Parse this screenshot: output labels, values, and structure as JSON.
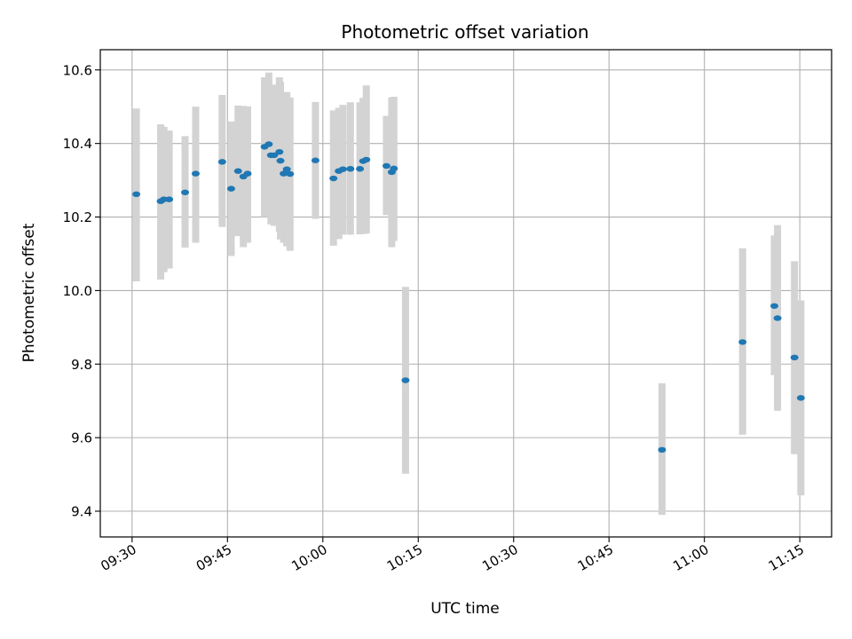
{
  "chart_data": {
    "type": "scatter",
    "title": "Photometric offset variation",
    "xlabel": "UTC time",
    "ylabel": "Photometric offset",
    "xlim": [
      "09:25",
      "11:20"
    ],
    "ylim": [
      9.33,
      10.655
    ],
    "grid": true,
    "xticks": [
      {
        "t": "09:30",
        "label": "09:30"
      },
      {
        "t": "09:45",
        "label": "09:45"
      },
      {
        "t": "10:00",
        "label": "10:00"
      },
      {
        "t": "10:15",
        "label": "10:15"
      },
      {
        "t": "10:30",
        "label": "10:30"
      },
      {
        "t": "10:45",
        "label": "10:45"
      },
      {
        "t": "11:00",
        "label": "11:00"
      },
      {
        "t": "11:15",
        "label": "11:15"
      }
    ],
    "yticks": [
      {
        "v": 9.4,
        "label": "9.4"
      },
      {
        "v": 9.6,
        "label": "9.6"
      },
      {
        "v": 9.8,
        "label": "9.8"
      },
      {
        "v": 10.0,
        "label": "10.0"
      },
      {
        "v": 10.2,
        "label": "10.2"
      },
      {
        "v": 10.4,
        "label": "10.4"
      },
      {
        "v": 10.6,
        "label": "10.6"
      }
    ],
    "colors": {
      "marker": "#1f77b4",
      "errorbar": "#d3d3d3",
      "grid": "#b0b0b0"
    },
    "points": [
      {
        "t": "09:30:40",
        "y": 10.262,
        "ylo": 10.025,
        "yhi": 10.495
      },
      {
        "t": "09:34:30",
        "y": 10.243,
        "ylo": 10.03,
        "yhi": 10.452
      },
      {
        "t": "09:35:00",
        "y": 10.248,
        "ylo": 10.05,
        "yhi": 10.445
      },
      {
        "t": "09:35:50",
        "y": 10.248,
        "ylo": 10.06,
        "yhi": 10.435
      },
      {
        "t": "09:38:20",
        "y": 10.267,
        "ylo": 10.117,
        "yhi": 10.42
      },
      {
        "t": "09:40:00",
        "y": 10.318,
        "ylo": 10.13,
        "yhi": 10.5
      },
      {
        "t": "09:44:10",
        "y": 10.35,
        "ylo": 10.173,
        "yhi": 10.532
      },
      {
        "t": "09:45:35",
        "y": 10.277,
        "ylo": 10.094,
        "yhi": 10.46
      },
      {
        "t": "09:46:40",
        "y": 10.325,
        "ylo": 10.148,
        "yhi": 10.503
      },
      {
        "t": "09:47:30",
        "y": 10.31,
        "ylo": 10.118,
        "yhi": 10.502
      },
      {
        "t": "09:48:10",
        "y": 10.318,
        "ylo": 10.13,
        "yhi": 10.501
      },
      {
        "t": "09:50:50",
        "y": 10.391,
        "ylo": 10.2,
        "yhi": 10.58
      },
      {
        "t": "09:51:30",
        "y": 10.398,
        "ylo": 10.201,
        "yhi": 10.593
      },
      {
        "t": "09:51:50",
        "y": 10.368,
        "ylo": 10.18,
        "yhi": 10.557
      },
      {
        "t": "09:52:20",
        "y": 10.368,
        "ylo": 10.176,
        "yhi": 10.56
      },
      {
        "t": "09:53:10",
        "y": 10.377,
        "ylo": 10.16,
        "yhi": 10.58
      },
      {
        "t": "09:53:20",
        "y": 10.353,
        "ylo": 10.139,
        "yhi": 10.568
      },
      {
        "t": "09:53:50",
        "y": 10.318,
        "ylo": 10.13,
        "yhi": 10.498
      },
      {
        "t": "09:54:20",
        "y": 10.33,
        "ylo": 10.12,
        "yhi": 10.54
      },
      {
        "t": "09:54:50",
        "y": 10.317,
        "ylo": 10.108,
        "yhi": 10.525
      },
      {
        "t": "09:58:50",
        "y": 10.354,
        "ylo": 10.195,
        "yhi": 10.513
      },
      {
        "t": "10:01:40",
        "y": 10.305,
        "ylo": 10.122,
        "yhi": 10.49
      },
      {
        "t": "10:02:30",
        "y": 10.325,
        "ylo": 10.14,
        "yhi": 10.497
      },
      {
        "t": "10:03:10",
        "y": 10.33,
        "ylo": 10.152,
        "yhi": 10.505
      },
      {
        "t": "10:04:20",
        "y": 10.331,
        "ylo": 10.152,
        "yhi": 10.512
      },
      {
        "t": "10:05:50",
        "y": 10.331,
        "ylo": 10.153,
        "yhi": 10.512
      },
      {
        "t": "10:06:20",
        "y": 10.352,
        "ylo": 10.154,
        "yhi": 10.524
      },
      {
        "t": "10:06:50",
        "y": 10.356,
        "ylo": 10.155,
        "yhi": 10.558
      },
      {
        "t": "10:10:00",
        "y": 10.339,
        "ylo": 10.205,
        "yhi": 10.475
      },
      {
        "t": "10:10:50",
        "y": 10.322,
        "ylo": 10.118,
        "yhi": 10.525
      },
      {
        "t": "10:11:10",
        "y": 10.332,
        "ylo": 10.135,
        "yhi": 10.527
      },
      {
        "t": "10:13:00",
        "y": 9.756,
        "ylo": 9.502,
        "yhi": 10.01
      },
      {
        "t": "10:53:20",
        "y": 9.567,
        "ylo": 9.39,
        "yhi": 9.748
      },
      {
        "t": "11:06:00",
        "y": 9.86,
        "ylo": 9.608,
        "yhi": 10.115
      },
      {
        "t": "11:11:00",
        "y": 9.958,
        "ylo": 9.77,
        "yhi": 10.15
      },
      {
        "t": "11:11:30",
        "y": 9.925,
        "ylo": 9.673,
        "yhi": 10.178
      },
      {
        "t": "11:14:10",
        "y": 9.818,
        "ylo": 9.555,
        "yhi": 10.08
      },
      {
        "t": "11:15:10",
        "y": 9.708,
        "ylo": 9.443,
        "yhi": 9.973
      }
    ]
  }
}
